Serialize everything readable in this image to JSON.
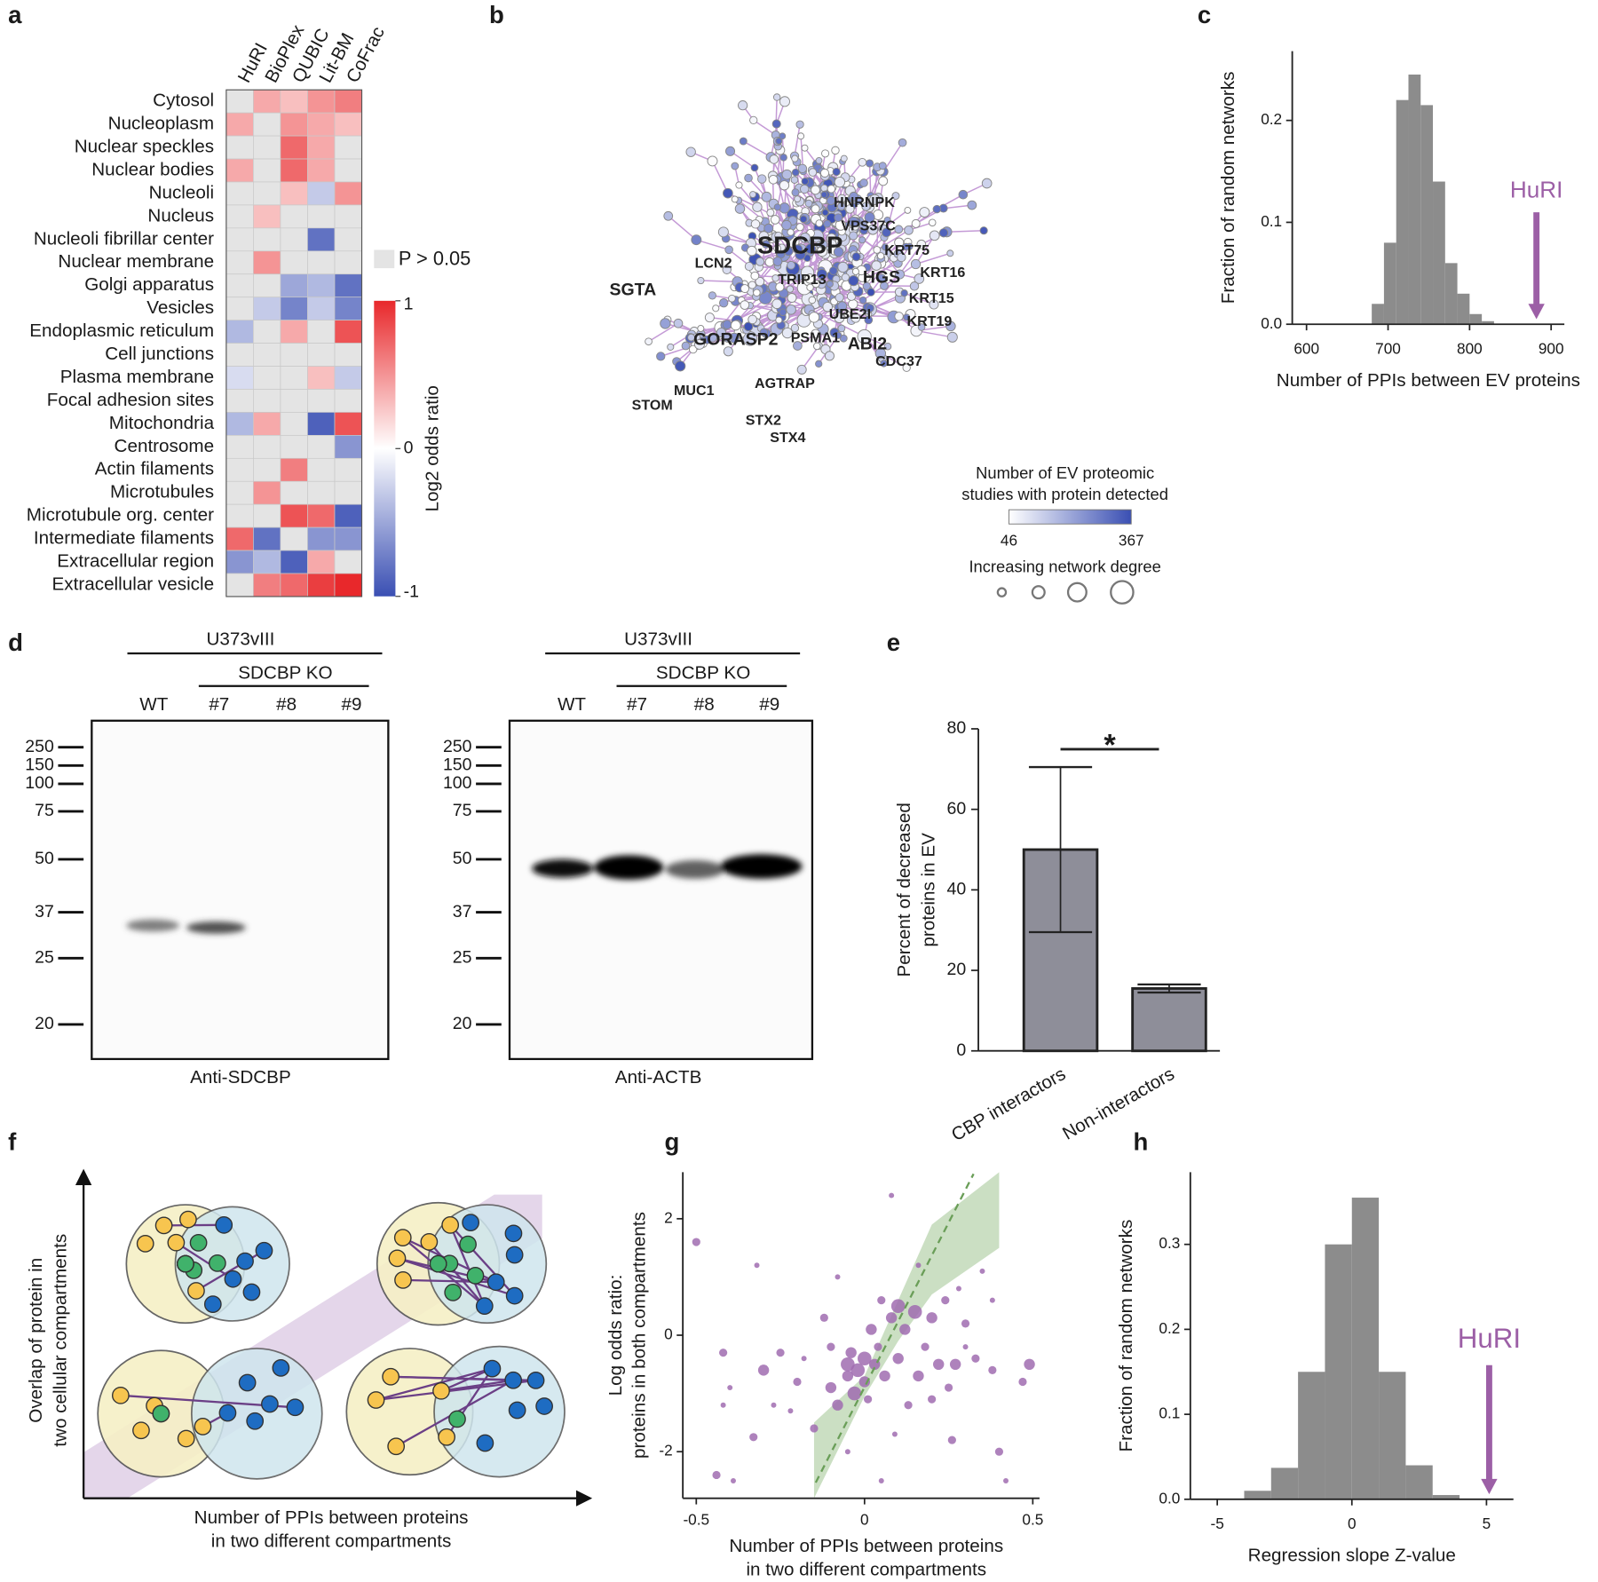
{
  "panel_labels": [
    "a",
    "b",
    "c",
    "d",
    "e",
    "f",
    "g",
    "h"
  ],
  "chart_data": [
    {
      "type": "heatmap",
      "columns": [
        "HuRI",
        "BioPlex",
        "QUBIC",
        "Lit-BM",
        "CoFrac"
      ],
      "rows": [
        "Cytosol",
        "Nucleoplasm",
        "Nuclear speckles",
        "Nuclear bodies",
        "Nucleoli",
        "Nucleus",
        "Nucleoli fibrillar center",
        "Nuclear membrane",
        "Golgi apparatus",
        "Vesicles",
        "Endoplasmic reticulum",
        "Cell junctions",
        "Plasma membrane",
        "Focal adhesion sites",
        "Mitochondria",
        "Centrosome",
        "Actin filaments",
        "Microtubules",
        "Microtubule org. center",
        "Intermediate filaments",
        "Extracellular region",
        "Extracellular vesicle"
      ],
      "values": [
        [
          null,
          0.4,
          0.3,
          0.5,
          0.6
        ],
        [
          0.4,
          null,
          0.5,
          0.4,
          0.3
        ],
        [
          null,
          null,
          0.7,
          0.4,
          null
        ],
        [
          0.4,
          null,
          0.7,
          0.4,
          null
        ],
        [
          null,
          null,
          0.3,
          -0.3,
          0.5
        ],
        [
          null,
          0.3,
          null,
          null,
          null
        ],
        [
          null,
          null,
          null,
          -0.8,
          null
        ],
        [
          null,
          0.5,
          null,
          null,
          null
        ],
        [
          null,
          null,
          -0.5,
          -0.4,
          -0.8
        ],
        [
          null,
          -0.3,
          -0.7,
          -0.3,
          -0.7
        ],
        [
          -0.4,
          null,
          0.4,
          null,
          0.8
        ],
        [
          null,
          null,
          null,
          null,
          null
        ],
        [
          -0.2,
          null,
          null,
          0.3,
          -0.3
        ],
        [
          null,
          null,
          null,
          null,
          null
        ],
        [
          -0.4,
          0.4,
          null,
          -0.9,
          0.8
        ],
        [
          null,
          null,
          null,
          null,
          -0.6
        ],
        [
          null,
          null,
          0.6,
          null,
          null
        ],
        [
          null,
          0.5,
          null,
          null,
          null
        ],
        [
          null,
          null,
          0.8,
          0.7,
          -0.9
        ],
        [
          0.7,
          -0.8,
          null,
          -0.6,
          -0.6
        ],
        [
          -0.6,
          -0.4,
          -0.9,
          0.4,
          null
        ],
        [
          null,
          0.6,
          0.7,
          0.9,
          1.0
        ]
      ],
      "null_label": "P > 0.05",
      "colorbar_label": "Log2 odds ratio",
      "clim": [
        -1,
        1
      ],
      "cticks": [
        1,
        0,
        -1
      ],
      "colors": {
        "low": "#3a4fb3",
        "mid": "#ffffff",
        "high": "#e8282b",
        "null": "#e4e4e4"
      }
    },
    {
      "type": "histogram",
      "bins": [
        680,
        695,
        710,
        725,
        740,
        755,
        770,
        785,
        800,
        815,
        830
      ],
      "counts": [
        0.02,
        0.08,
        0.22,
        0.245,
        0.215,
        0.14,
        0.06,
        0.03,
        0.01,
        0.003
      ],
      "color": "#8c8c8c",
      "xlim": [
        582.5,
        916.25
      ],
      "ylim": [
        0,
        0.268
      ],
      "xticks": [
        600,
        700,
        800,
        900
      ],
      "yticks": [
        {
          "value": 0,
          "label": "0.0"
        },
        0.1,
        0.2
      ],
      "xlabel": "Number of PPIs between EV proteins",
      "ylabel": "Fraction of random networks",
      "annotation": {
        "text": "HuRI",
        "x": 882,
        "color": "#9c5fa6"
      }
    },
    {
      "type": "bar",
      "categories": [
        "CBP interactors",
        "Non-interactors"
      ],
      "values": [
        50,
        15.5
      ],
      "errors": [
        20.5,
        1
      ],
      "color": "#8e8e99",
      "ylim": [
        0,
        80
      ],
      "yticks": [
        0,
        20,
        40,
        60,
        80
      ],
      "ylabel": [
        "Percent of decreased",
        "proteins in EV"
      ],
      "significance": "*"
    },
    {
      "type": "scatter",
      "x": [
        -0.5,
        -0.32,
        -0.42,
        -0.4,
        -0.42,
        -0.33,
        -0.39,
        -0.44,
        -0.3,
        -0.25,
        -0.2,
        -0.22,
        -0.18,
        -0.15,
        -0.1,
        -0.1,
        -0.08,
        -0.05,
        -0.05,
        -0.04,
        -0.03,
        -0.02,
        0,
        0,
        0.01,
        0.02,
        0.03,
        0.04,
        0.05,
        0.06,
        0.08,
        0.1,
        0.1,
        0.12,
        0.13,
        0.15,
        0.16,
        0.18,
        0.2,
        0.2,
        0.22,
        0.24,
        0.25,
        0.26,
        0.27,
        0.3,
        0.3,
        0.33,
        0.38,
        0.38,
        0.47,
        0.49,
        0.42,
        0.4,
        0.08,
        -0.08,
        0.05,
        -0.12,
        0.16,
        0.09,
        -0.27,
        0.35,
        0.28,
        -0.05
      ],
      "y": [
        1.6,
        1.2,
        -0.3,
        -0.9,
        -1.2,
        -1.75,
        -2.5,
        -2.4,
        -0.6,
        -0.3,
        -0.8,
        -1.3,
        -0.4,
        -1.6,
        -0.9,
        -0.2,
        -1.2,
        -0.5,
        -0.7,
        -0.3,
        -1.0,
        -0.6,
        -0.4,
        -0.8,
        -1.1,
        0.1,
        -0.5,
        -0.2,
        0.6,
        -0.7,
        0.3,
        0.5,
        -0.4,
        0.1,
        -1.2,
        0.4,
        -0.7,
        -0.2,
        0.3,
        -1.1,
        -0.5,
        0.6,
        -0.9,
        -1.8,
        -0.5,
        0.2,
        -0.2,
        -0.4,
        -0.6,
        0.6,
        -0.8,
        -0.5,
        -2.5,
        -2.0,
        2.4,
        1.0,
        -2.5,
        0.3,
        1.2,
        -1.7,
        -1.2,
        1.1,
        0.8,
        -2.0
      ],
      "sizes": [
        2,
        1,
        2,
        1,
        1,
        2,
        1,
        2,
        3,
        2,
        2,
        1,
        1,
        2,
        3,
        2,
        3,
        4,
        3,
        3,
        4,
        4,
        4,
        3,
        2,
        3,
        3,
        2,
        2,
        3,
        3,
        4,
        3,
        3,
        2,
        4,
        3,
        2,
        3,
        2,
        3,
        2,
        2,
        2,
        3,
        2,
        1,
        2,
        2,
        1,
        2,
        3,
        1,
        2,
        1,
        1,
        1,
        2,
        1,
        1,
        1,
        1,
        1,
        1
      ],
      "color": "#a06cb0",
      "fit": {
        "x": [
          -0.145,
          0.324
        ],
        "y": [
          -2.53,
          2.77
        ],
        "color": "#6a9e58"
      },
      "band": {
        "x": [
          -0.15,
          0,
          0.1,
          0.2,
          0.4
        ],
        "low": [
          -2.8,
          -1.05,
          -0.1,
          0.7,
          1.5
        ],
        "high": [
          -1.5,
          -0.7,
          0.6,
          1.9,
          2.8
        ],
        "color": "#a9c99b"
      },
      "xlim": [
        -0.54,
        0.52
      ],
      "ylim": [
        -2.8,
        2.8
      ],
      "xticks": [
        -0.5,
        0,
        0.5
      ],
      "yticks": [
        -2,
        0,
        2
      ],
      "xlabel": [
        "Number of PPIs between proteins",
        "in two different compartments"
      ],
      "ylabel": [
        "Log odds ratio:",
        "proteins in both compartments"
      ]
    },
    {
      "type": "histogram",
      "bins": [
        -4,
        -3,
        -2,
        -1,
        0,
        1,
        2,
        3,
        4
      ],
      "counts": [
        0.01,
        0.037,
        0.15,
        0.3,
        0.355,
        0.15,
        0.04,
        0.005
      ],
      "color": "#8c8c8c",
      "xlim": [
        -6,
        6
      ],
      "ylim": [
        0,
        0.385
      ],
      "xticks": [
        -5,
        0,
        5
      ],
      "yticks": [
        {
          "value": 0,
          "label": "0.0"
        },
        0.1,
        0.2,
        0.3
      ],
      "xlabel": "Regression slope Z-value",
      "ylabel": "Fraction of random networks",
      "annotation": {
        "text": "HuRI",
        "x": 5.1,
        "color": "#9c5fa6"
      }
    }
  ],
  "network": {
    "genes": [
      "HNRNPK",
      "VPS37C",
      "SDCBP",
      "KRT75",
      "LCN2",
      "TRIP13",
      "HGS",
      "KRT16",
      "SGTA",
      "KRT15",
      "UBE2I",
      "KRT19",
      "GORASP2",
      "PSMA1",
      "ABI2",
      "CDC37",
      "AGTRAP",
      "MUC1",
      "STOM",
      "STX2",
      "STX4"
    ],
    "legend_title": [
      "Number of EV proteomic",
      "studies with protein detected"
    ],
    "color_range": [
      46,
      367
    ],
    "degree_label": "Increasing network degree"
  },
  "blots": [
    {
      "cell_line": "U373vIII",
      "ko_label": "SDCBP KO",
      "lanes": [
        "WT",
        "#7",
        "#8",
        "#9"
      ],
      "markers": [
        250,
        150,
        100,
        75,
        50,
        37,
        25,
        20
      ],
      "antibody": "Anti-SDCBP"
    },
    {
      "cell_line": "U373vIII",
      "ko_label": "SDCBP KO",
      "lanes": [
        "WT",
        "#7",
        "#8",
        "#9"
      ],
      "markers": [
        250,
        150,
        100,
        75,
        50,
        37,
        25,
        20
      ],
      "antibody": "Anti-ACTB"
    }
  ],
  "schematic": {
    "y_label": [
      "Overlap of protein in",
      "two cellular compartments"
    ],
    "x_label": [
      "Number of PPIs between proteins",
      "in two different compartments"
    ]
  }
}
